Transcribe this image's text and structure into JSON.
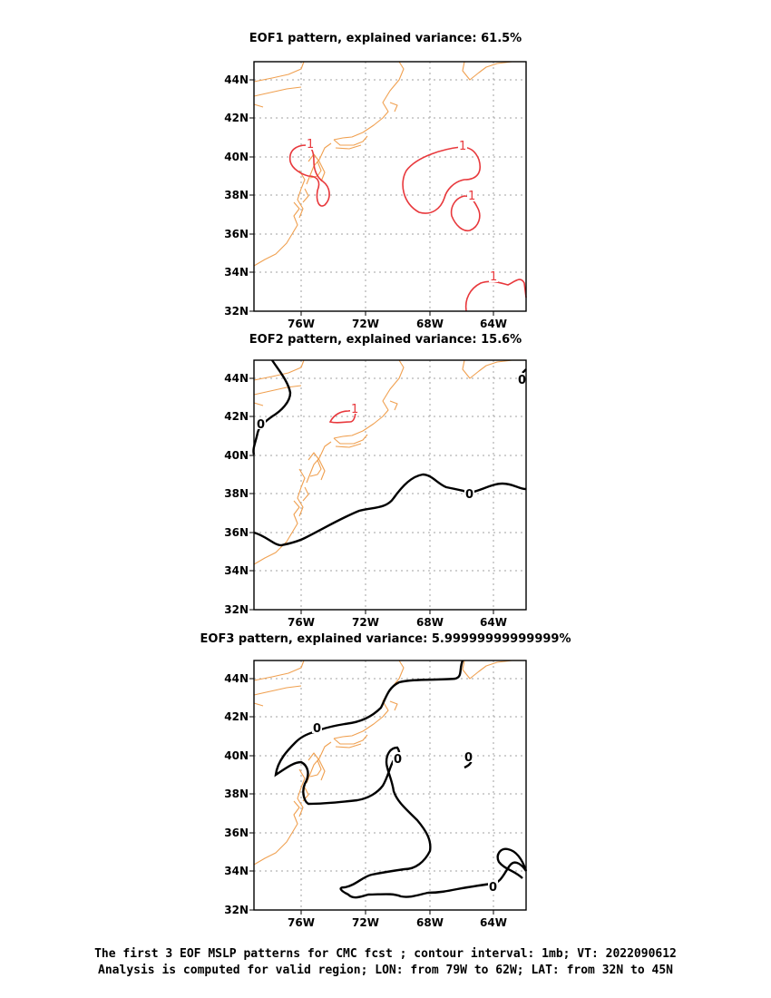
{
  "panels": [
    {
      "title": "EOF1 pattern, explained variance: 61.5%"
    },
    {
      "title": "EOF2 pattern, explained variance: 15.6%"
    },
    {
      "title": "EOF3 pattern, explained variance: 5.99999999999999%"
    }
  ],
  "axes": {
    "lat_ticks": [
      "44N",
      "42N",
      "40N",
      "38N",
      "36N",
      "34N",
      "32N"
    ],
    "lon_ticks": [
      "76W",
      "72W",
      "68W",
      "64W"
    ]
  },
  "contour_labels": {
    "positive": "1",
    "zero": "0"
  },
  "colors": {
    "coastline": "#f0a050",
    "positive_contour": "#e8383c",
    "zero_contour": "#000000",
    "grid": "#a0a0a0"
  },
  "caption": {
    "line1": "The first 3 EOF MSLP patterns for CMC fcst ; contour interval: 1mb; VT: 2022090612",
    "line2": "Analysis is computed for valid region; LON: from 79W to 62W; LAT: from 32N to 45N"
  }
}
